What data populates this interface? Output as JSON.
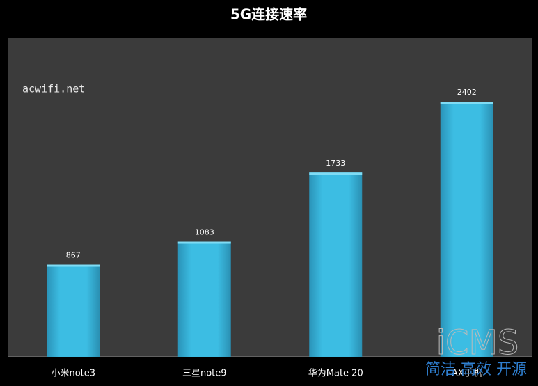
{
  "chart_data": {
    "type": "bar",
    "title": "5G连接速率",
    "categories": [
      "小米note3",
      "三星note9",
      "华为Mate 20",
      "AX手机"
    ],
    "values": [
      867,
      1083,
      1733,
      2402
    ],
    "color": "#3cbde3",
    "annotation": "acwifi.net"
  },
  "watermark": {
    "logo": "iCMS",
    "slogan": "简洁 高效 开源"
  }
}
